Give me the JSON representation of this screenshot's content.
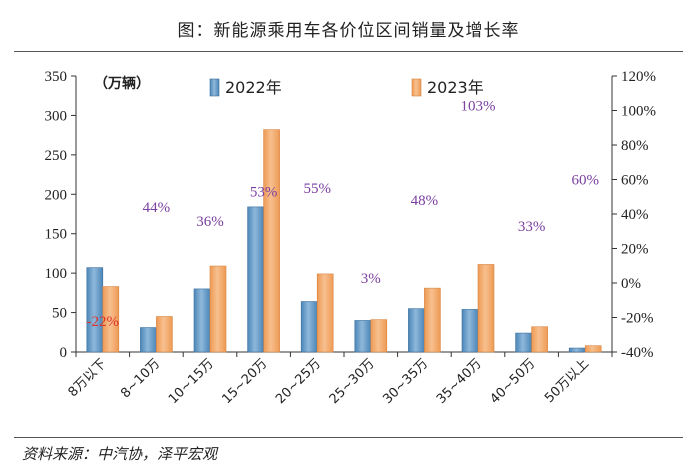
{
  "header": {
    "title": "图：新能源乘用车各价位区间销量及增长率"
  },
  "footer": {
    "source": "资料来源：中汽协，泽平宏观"
  },
  "chart_data": {
    "type": "bar",
    "title": "图：新能源乘用车各价位区间销量及增长率",
    "unit_label": "（万辆）",
    "categories": [
      "8万以下",
      "8~10万",
      "10~15万",
      "15~20万",
      "20~25万",
      "25~30万",
      "30~35万",
      "35~40万",
      "40~50万",
      "50万以上"
    ],
    "series": [
      {
        "name": "2022年",
        "values": [
          107,
          31,
          80,
          184,
          64,
          40,
          55,
          54,
          24,
          5
        ],
        "color": "#4b86b8"
      },
      {
        "name": "2023年",
        "values": [
          83,
          45,
          109,
          282,
          99,
          41,
          81,
          111,
          32,
          8
        ],
        "color": "#ee9a54"
      }
    ],
    "growth_rates": [
      {
        "label": "-22%",
        "value": -22,
        "color": "#e0322c"
      },
      {
        "label": "44%",
        "value": 44,
        "color": "#7b3fa0"
      },
      {
        "label": "36%",
        "value": 36,
        "color": "#7b3fa0"
      },
      {
        "label": "53%",
        "value": 53,
        "color": "#7b3fa0"
      },
      {
        "label": "55%",
        "value": 55,
        "color": "#7b3fa0"
      },
      {
        "label": "3%",
        "value": 3,
        "color": "#7b3fa0"
      },
      {
        "label": "48%",
        "value": 48,
        "color": "#7b3fa0"
      },
      {
        "label": "103%",
        "value": 103,
        "color": "#7b3fa0"
      },
      {
        "label": "33%",
        "value": 33,
        "color": "#7b3fa0"
      },
      {
        "label": "60%",
        "value": 60,
        "color": "#7b3fa0"
      }
    ],
    "y_left": {
      "min": 0,
      "max": 350,
      "ticks": [
        "0",
        "50",
        "100",
        "150",
        "200",
        "250",
        "300",
        "350"
      ]
    },
    "y_right": {
      "min": -40,
      "max": 120,
      "ticks": [
        "-40%",
        "-20%",
        "0%",
        "20%",
        "40%",
        "60%",
        "80%",
        "100%",
        "120%"
      ]
    },
    "legend": [
      "2022年",
      "2023年"
    ],
    "legend_position": "top",
    "grid": false
  }
}
